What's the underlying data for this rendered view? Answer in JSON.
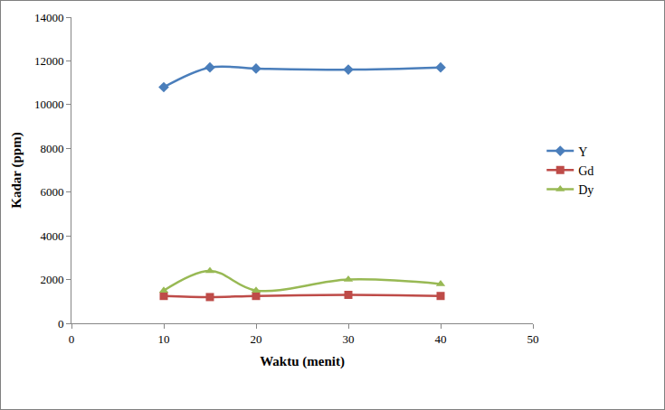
{
  "chart_data": {
    "type": "line",
    "x_label": "Waktu (menit)",
    "y_label": "Kadar (ppm)",
    "x": [
      10,
      15,
      20,
      30,
      40
    ],
    "series": [
      {
        "name": "Y",
        "color": "#4a7ebb",
        "marker": "diamond",
        "line_style": "smooth",
        "values": [
          10800,
          11700,
          11650,
          11600,
          11700
        ]
      },
      {
        "name": "Gd",
        "color": "#be4b48",
        "marker": "square",
        "line_style": "smooth",
        "values": [
          1250,
          1200,
          1250,
          1300,
          1250
        ]
      },
      {
        "name": "Dy",
        "color": "#98b954",
        "marker": "triangle-up",
        "line_style": "smooth",
        "values": [
          1500,
          2400,
          1500,
          2000,
          1800
        ]
      }
    ],
    "xlim": [
      0,
      50
    ],
    "xticks": [
      0,
      10,
      20,
      30,
      40,
      50
    ],
    "ylim": [
      0,
      14000
    ],
    "yticks": [
      0,
      2000,
      4000,
      6000,
      8000,
      10000,
      12000,
      14000
    ],
    "grid": false,
    "legend": "right"
  }
}
